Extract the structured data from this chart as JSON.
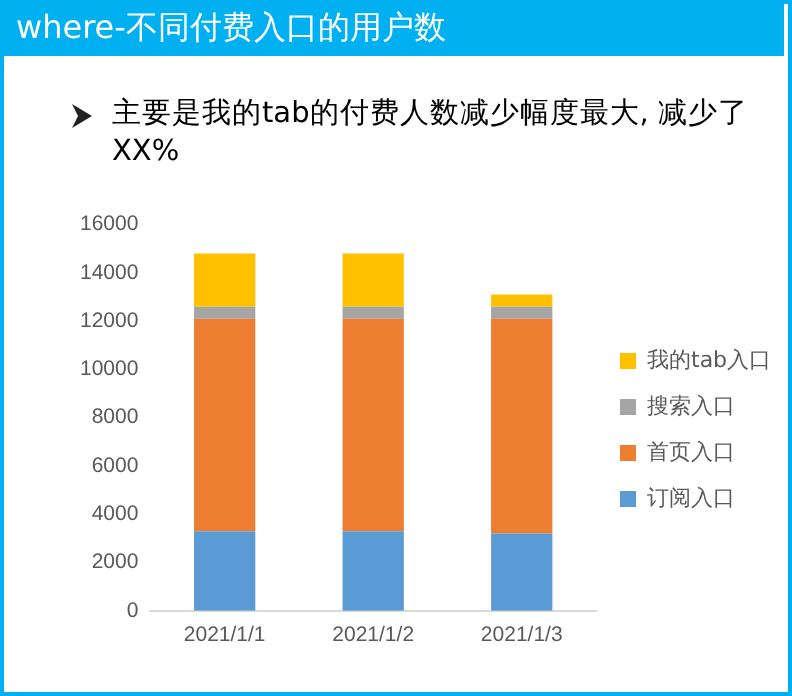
{
  "chart_data": {
    "type": "bar",
    "title": "where-不同付费入口的用户数",
    "subtitle": "主要是我的tab的付费人数减少幅度最大, 减少了XX%",
    "categories": [
      "2021/1/1",
      "2021/1/2",
      "2021/1/3"
    ],
    "stacked": true,
    "series": [
      {
        "name": "订阅入口",
        "color": "#5b9bd5",
        "values": [
          3300,
          3300,
          3200
        ]
      },
      {
        "name": "首页入口",
        "color": "#ed7d31",
        "values": [
          8800,
          8800,
          8900
        ]
      },
      {
        "name": "搜索入口",
        "color": "#a5a5a5",
        "values": [
          500,
          500,
          500
        ]
      },
      {
        "name": "我的tab入口",
        "color": "#ffc000",
        "values": [
          2200,
          2200,
          500
        ]
      }
    ],
    "ylim": [
      0,
      16000
    ],
    "yticks": [
      0,
      2000,
      4000,
      6000,
      8000,
      10000,
      12000,
      14000,
      16000
    ],
    "grid": false,
    "legend": "right"
  }
}
